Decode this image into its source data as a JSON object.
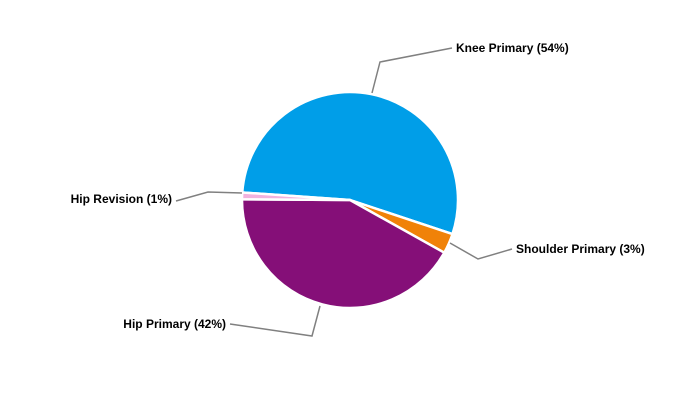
{
  "chart_data": {
    "type": "pie",
    "title": "",
    "slices": [
      {
        "label": "Knee Primary (54%)",
        "name": "Knee Primary",
        "value": 54,
        "color": "#009EE8"
      },
      {
        "label": "Shoulder Primary (3%)",
        "name": "Shoulder Primary",
        "value": 3,
        "color": "#F08208"
      },
      {
        "label": "Hip Primary (42%)",
        "name": "Hip Primary",
        "value": 42,
        "color": "#850F78"
      },
      {
        "label": "Hip Revision (1%)",
        "name": "Hip Revision",
        "value": 1,
        "color": "#F2B2DE"
      }
    ],
    "legend": "none",
    "leader_line_color": "#808080"
  }
}
